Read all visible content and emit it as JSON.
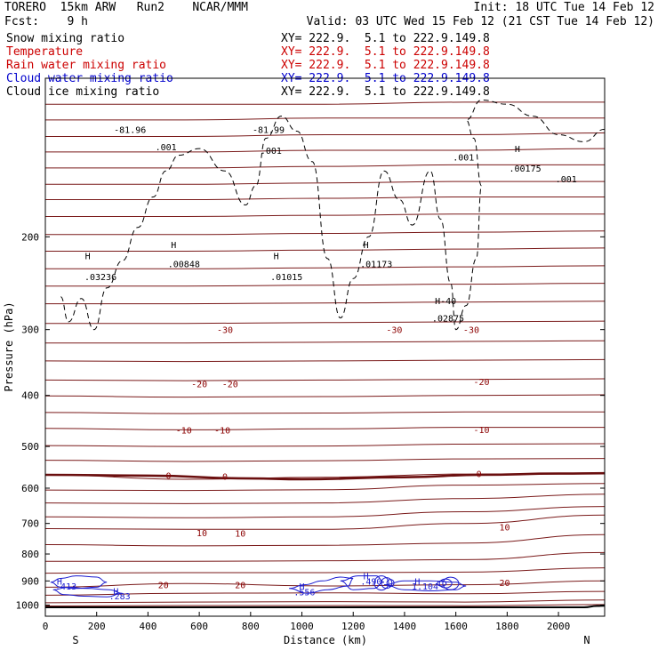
{
  "header": {
    "model": "TORERO  15km ARW   Run2    NCAR/MMM",
    "init": "Init: 18 UTC Tue 14 Feb 12",
    "fcst": "Fcst:    9 h",
    "valid": "Valid: 03 UTC Wed 15 Feb 12 (21 CST Tue 14 Feb 12)"
  },
  "legend": [
    {
      "name": "Snow mixing ratio",
      "xy": "XY= 222.9.  5.1 to 222.9.149.8",
      "color": "#000000"
    },
    {
      "name": "Temperature",
      "xy": "XY= 222.9.  5.1 to 222.9.149.8",
      "color": "#cc0000"
    },
    {
      "name": "Rain water mixing ratio",
      "xy": "XY= 222.9.  5.1 to 222.9.149.8",
      "color": "#cc0000"
    },
    {
      "name": "Cloud water mixing ratio",
      "xy": "XY= 222.9.  5.1 to 222.9.149.8",
      "color": "#0000cc"
    },
    {
      "name": "Cloud ice mixing ratio",
      "xy": "XY= 222.9.  5.1 to 222.9.149.8",
      "color": "#000000"
    }
  ],
  "chart_data": {
    "type": "cross-section contour",
    "xlabel": "Distance (km)",
    "ylabel": "Pressure (hPa)",
    "xlim": [
      0,
      2180
    ],
    "ylim": [
      1050,
      100
    ],
    "y_scale": "log",
    "x_ticks": [
      0,
      200,
      400,
      600,
      800,
      1000,
      1200,
      1400,
      1600,
      1800,
      2000
    ],
    "y_ticks": [
      200,
      300,
      400,
      500,
      600,
      700,
      800,
      900,
      1000
    ],
    "endpoints": {
      "left": "S",
      "right": "N"
    },
    "theta_contours_hpa": [
      {
        "p": [
          1004,
          1002,
          1002,
          1003,
          998
        ]
      },
      {
        "p": [
          990,
          987,
          985,
          987,
          978
        ]
      },
      {
        "p": [
          958,
          950,
          948,
          952,
          942
        ]
      },
      {
        "p": [
          925,
          910,
          920,
          915,
          900
        ]
      },
      {
        "p": [
          870,
          868,
          868,
          866,
          850
        ]
      },
      {
        "p": [
          826,
          826,
          824,
          820,
          795
        ]
      },
      {
        "p": [
          768,
          772,
          770,
          763,
          735
        ]
      },
      {
        "p": [
          716,
          718,
          718,
          700,
          675
        ]
      },
      {
        "p": [
          680,
          683,
          680,
          665,
          650
        ]
      },
      {
        "p": [
          640,
          642,
          640,
          628,
          616
        ]
      },
      {
        "p": [
          605,
          606,
          604,
          592,
          588
        ]
      },
      {
        "p": [
          566,
          577,
          572,
          564,
          563
        ]
      },
      {
        "p": [
          531,
          534,
          532,
          528,
          527
        ]
      },
      {
        "p": [
          498,
          500,
          499,
          495,
          494
        ]
      },
      {
        "p": [
          462,
          465,
          463,
          460,
          460
        ]
      },
      {
        "p": [
          431,
          433,
          432,
          430,
          430
        ]
      },
      {
        "p": [
          401,
          403,
          402,
          400,
          399
        ]
      },
      {
        "p": [
          374,
          375,
          374,
          373,
          372
        ]
      },
      {
        "p": [
          344,
          345,
          344,
          343,
          342
        ]
      },
      {
        "p": [
          318,
          318,
          317,
          316,
          315
        ]
      },
      {
        "p": [
          292,
          292,
          291,
          290,
          289
        ]
      },
      {
        "p": [
          268,
          268,
          267,
          266,
          265
        ]
      },
      {
        "p": [
          248,
          248,
          247,
          246,
          245
        ]
      },
      {
        "p": [
          230,
          230,
          229,
          228,
          227
        ]
      },
      {
        "p": [
          213,
          213,
          212,
          211,
          210
        ]
      },
      {
        "p": [
          198,
          198,
          197,
          196,
          195
        ]
      },
      {
        "p": [
          183,
          183,
          182,
          181,
          181
        ]
      },
      {
        "p": [
          170,
          170,
          169,
          168,
          168
        ]
      },
      {
        "p": [
          159,
          159,
          158,
          157,
          157
        ]
      },
      {
        "p": [
          148,
          148,
          147,
          146,
          146
        ]
      },
      {
        "p": [
          138,
          138,
          137,
          137,
          136
        ]
      },
      {
        "p": [
          129,
          129,
          128,
          128,
          127
        ]
      },
      {
        "p": [
          120,
          120,
          119,
          119,
          119
        ]
      },
      {
        "p": [
          112,
          112,
          112,
          111,
          111
        ]
      }
    ],
    "freezing_level": {
      "x": [
        0,
        400,
        800,
        1000,
        1400,
        1700,
        2000,
        2180
      ],
      "p": [
        566,
        568,
        575,
        577,
        572,
        566,
        563,
        562
      ]
    },
    "surface": {
      "x": [
        0,
        2100,
        2150,
        2180
      ],
      "p": [
        1010,
        1010,
        1004,
        1003
      ]
    },
    "temperature_labels": [
      {
        "text": "-30",
        "x": 700,
        "p": 300
      },
      {
        "text": "-30",
        "x": 1360,
        "p": 300
      },
      {
        "text": "-30",
        "x": 1660,
        "p": 300
      },
      {
        "text": "-20",
        "x": 600,
        "p": 380
      },
      {
        "text": "-20",
        "x": 720,
        "p": 380
      },
      {
        "text": "-20",
        "x": 1700,
        "p": 376
      },
      {
        "text": "-10",
        "x": 540,
        "p": 465
      },
      {
        "text": "-10",
        "x": 690,
        "p": 465
      },
      {
        "text": "-10",
        "x": 1700,
        "p": 464
      },
      {
        "text": "0",
        "x": 480,
        "p": 567
      },
      {
        "text": "0",
        "x": 700,
        "p": 569
      },
      {
        "text": "0",
        "x": 1690,
        "p": 563
      },
      {
        "text": "10",
        "x": 610,
        "p": 728
      },
      {
        "text": "10",
        "x": 760,
        "p": 730
      },
      {
        "text": "10",
        "x": 1790,
        "p": 710
      },
      {
        "text": "20",
        "x": 460,
        "p": 915
      },
      {
        "text": "20",
        "x": 760,
        "p": 915
      },
      {
        "text": "20",
        "x": 1790,
        "p": 906
      }
    ],
    "snow_labels": [
      {
        "text": "H",
        "x": 165,
        "p": 217
      },
      {
        "text": ".03236",
        "x": 215,
        "p": 238
      },
      {
        "text": "H",
        "x": 500,
        "p": 207
      },
      {
        "text": ".00848",
        "x": 540,
        "p": 225
      },
      {
        "text": "H",
        "x": 900,
        "p": 217
      },
      {
        "text": ".01015",
        "x": 940,
        "p": 238
      },
      {
        "text": "H",
        "x": 1250,
        "p": 207
      },
      {
        "text": ".01173",
        "x": 1290,
        "p": 225
      },
      {
        "text": "H-40",
        "x": 1560,
        "p": 264
      },
      {
        "text": ".02875",
        "x": 1570,
        "p": 285
      },
      {
        "text": ".001",
        "x": 1630,
        "p": 141
      },
      {
        "text": "H",
        "x": 1840,
        "p": 136
      },
      {
        "text": ".00175",
        "x": 1870,
        "p": 148
      },
      {
        "text": ".001",
        "x": 2030,
        "p": 155
      },
      {
        "text": ".001",
        "x": 470,
        "p": 135
      },
      {
        "text": "-81.96",
        "x": 330,
        "p": 125
      },
      {
        "text": "-81.99",
        "x": 870,
        "p": 125
      },
      {
        "text": ".001",
        "x": 880,
        "p": 137
      }
    ],
    "cloud_water_labels": [
      {
        "text": "H",
        "x": 55,
        "p": 900
      },
      {
        "text": ".413",
        "x": 80,
        "p": 920
      },
      {
        "text": "H",
        "x": 275,
        "p": 940
      },
      {
        "text": ".283",
        "x": 290,
        "p": 961
      },
      {
        "text": "H",
        "x": 1000,
        "p": 920
      },
      {
        "text": ".556",
        "x": 1010,
        "p": 943
      },
      {
        "text": "H",
        "x": 1250,
        "p": 880
      },
      {
        "text": ".490",
        "x": 1270,
        "p": 900
      },
      {
        "text": "H",
        "x": 1450,
        "p": 900
      },
      {
        "text": "1.104",
        "x": 1480,
        "p": 920
      }
    ]
  }
}
